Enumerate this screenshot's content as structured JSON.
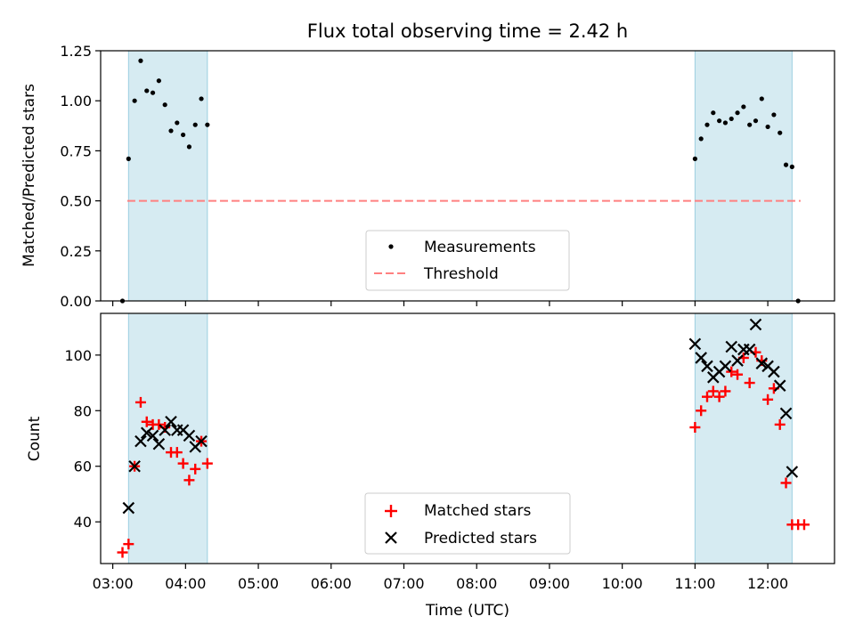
{
  "chart_data": [
    {
      "type": "scatter",
      "title": "Flux total observing time = 2.42 h",
      "xlabel": "",
      "ylabel": "Matched/Predicted stars",
      "ylim": [
        0,
        1.25
      ],
      "yticks": [
        "0.00",
        "0.25",
        "0.50",
        "0.75",
        "1.00",
        "1.25"
      ],
      "xlim": [
        "02:50",
        "12:55"
      ],
      "grid": false,
      "legend": "lower center",
      "threshold": {
        "name": "Threshold",
        "value": 0.5,
        "x_start": "03:12",
        "x_end": "12:27",
        "color": "#ff8080"
      },
      "shaded_intervals": [
        [
          "03:13",
          "04:18"
        ],
        [
          "11:00",
          "12:20"
        ]
      ],
      "series": [
        {
          "name": "Measurements",
          "color": "#000000",
          "x": [
            "03:08",
            "03:13",
            "03:18",
            "03:23",
            "03:28",
            "03:33",
            "03:38",
            "03:43",
            "03:48",
            "03:53",
            "03:58",
            "04:03",
            "04:08",
            "04:13",
            "04:18",
            "11:00",
            "11:05",
            "11:10",
            "11:15",
            "11:20",
            "11:25",
            "11:30",
            "11:35",
            "11:40",
            "11:45",
            "11:50",
            "11:55",
            "12:00",
            "12:05",
            "12:10",
            "12:15",
            "12:20",
            "12:25"
          ],
          "y": [
            0.0,
            0.71,
            1.0,
            1.2,
            1.05,
            1.04,
            1.1,
            0.98,
            0.85,
            0.89,
            0.83,
            0.77,
            0.88,
            1.01,
            0.88,
            0.71,
            0.81,
            0.88,
            0.94,
            0.9,
            0.89,
            0.91,
            0.94,
            0.97,
            0.88,
            0.9,
            1.01,
            0.87,
            0.93,
            0.84,
            0.68,
            0.67,
            0.0
          ]
        }
      ]
    },
    {
      "type": "scatter",
      "title": "",
      "xlabel": "Time (UTC)",
      "ylabel": "Count",
      "ylim": [
        25,
        115
      ],
      "yticks": [
        "40",
        "60",
        "80",
        "100"
      ],
      "xlim": [
        "02:50",
        "12:55"
      ],
      "xticks": [
        "03:00",
        "04:00",
        "05:00",
        "06:00",
        "07:00",
        "08:00",
        "09:00",
        "10:00",
        "11:00",
        "12:00"
      ],
      "grid": false,
      "legend": "lower center",
      "shaded_intervals": [
        [
          "03:13",
          "04:18"
        ],
        [
          "11:00",
          "12:20"
        ]
      ],
      "series": [
        {
          "name": "Matched stars",
          "color": "#ff0000",
          "marker": "plus",
          "x": [
            "03:08",
            "03:13",
            "03:18",
            "03:23",
            "03:28",
            "03:33",
            "03:38",
            "03:43",
            "03:48",
            "03:53",
            "03:58",
            "04:03",
            "04:08",
            "04:13",
            "04:18",
            "11:00",
            "11:05",
            "11:10",
            "11:15",
            "11:20",
            "11:25",
            "11:30",
            "11:35",
            "11:40",
            "11:45",
            "11:50",
            "11:55",
            "12:00",
            "12:05",
            "12:10",
            "12:15",
            "12:20",
            "12:25",
            "12:30"
          ],
          "y": [
            29,
            32,
            60,
            83,
            76,
            75,
            75,
            74,
            65,
            65,
            61,
            55,
            59,
            69,
            61,
            74,
            80,
            85,
            87,
            85,
            87,
            94,
            93,
            99,
            90,
            101,
            98,
            84,
            88,
            75,
            54,
            39,
            39,
            39
          ]
        },
        {
          "name": "Predicted stars",
          "color": "#000000",
          "marker": "x",
          "x": [
            "03:13",
            "03:18",
            "03:23",
            "03:28",
            "03:33",
            "03:38",
            "03:43",
            "03:48",
            "03:53",
            "03:58",
            "04:03",
            "04:08",
            "04:13",
            "11:00",
            "11:05",
            "11:10",
            "11:15",
            "11:20",
            "11:25",
            "11:30",
            "11:35",
            "11:40",
            "11:45",
            "11:50",
            "11:55",
            "12:00",
            "12:05",
            "12:10",
            "12:15",
            "12:20"
          ],
          "y": [
            45,
            60,
            69,
            72,
            71,
            68,
            73,
            76,
            73,
            73,
            71,
            67,
            69,
            104,
            99,
            96,
            92,
            94,
            96,
            103,
            98,
            102,
            102,
            111,
            97,
            96,
            94,
            89,
            79,
            58
          ]
        }
      ]
    }
  ]
}
